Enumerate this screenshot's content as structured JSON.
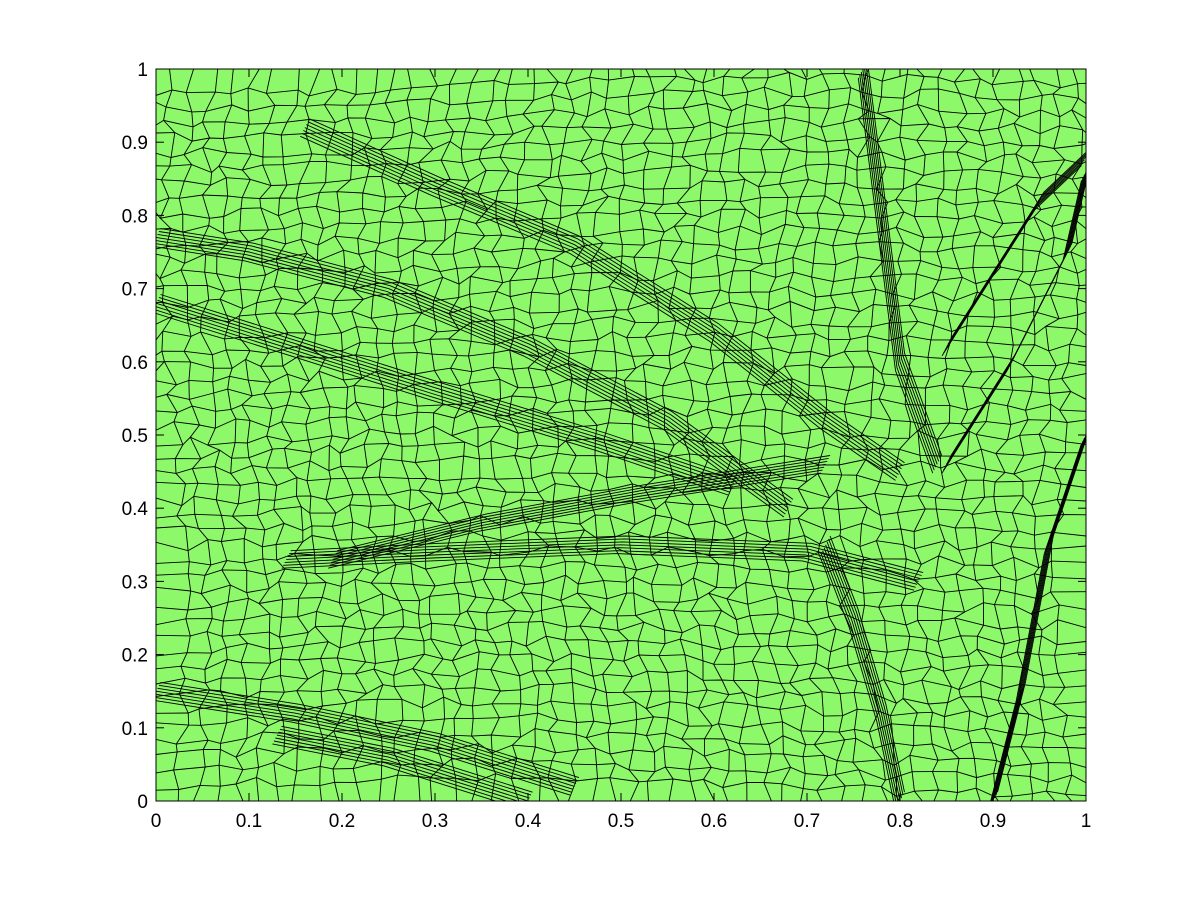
{
  "figure": {
    "background_color": "#ffffff",
    "plot_fill_color": "#8cf86a",
    "line_color": "#000000"
  },
  "chart_data": {
    "type": "mesh",
    "title": "",
    "xlabel": "",
    "ylabel": "",
    "xlim": [
      0,
      1
    ],
    "ylim": [
      0,
      1
    ],
    "grid": false,
    "xticks": [
      0,
      0.1,
      0.2,
      0.3,
      0.4,
      0.5,
      0.6,
      0.7,
      0.8,
      0.9,
      1
    ],
    "yticks": [
      0,
      0.1,
      0.2,
      0.3,
      0.4,
      0.5,
      0.6,
      0.7,
      0.8,
      0.9,
      1
    ],
    "xtick_labels": [
      "0",
      "0.1",
      "0.2",
      "0.3",
      "0.4",
      "0.5",
      "0.6",
      "0.7",
      "0.8",
      "0.9",
      "1"
    ],
    "ytick_labels": [
      "0",
      "0.1",
      "0.2",
      "0.3",
      "0.4",
      "0.5",
      "0.6",
      "0.7",
      "0.8",
      "0.9",
      "1"
    ],
    "mesh": {
      "element_type": "quadrilateral",
      "approx_resolution": [
        48,
        48
      ],
      "feature_polylines": [
        {
          "name": "feature-ridge-1",
          "points": [
            [
              0.0,
              0.77
            ],
            [
              0.1,
              0.75
            ],
            [
              0.25,
              0.7
            ],
            [
              0.4,
              0.62
            ],
            [
              0.55,
              0.52
            ],
            [
              0.68,
              0.4
            ]
          ]
        },
        {
          "name": "feature-ridge-2",
          "points": [
            [
              0.16,
              0.92
            ],
            [
              0.3,
              0.84
            ],
            [
              0.45,
              0.76
            ],
            [
              0.6,
              0.64
            ],
            [
              0.72,
              0.52
            ],
            [
              0.8,
              0.45
            ]
          ]
        },
        {
          "name": "feature-ridge-3",
          "points": [
            [
              0.14,
              0.33
            ],
            [
              0.3,
              0.34
            ],
            [
              0.5,
              0.35
            ],
            [
              0.7,
              0.34
            ],
            [
              0.82,
              0.3
            ]
          ]
        },
        {
          "name": "feature-ridge-4",
          "points": [
            [
              0.19,
              0.33
            ],
            [
              0.35,
              0.38
            ],
            [
              0.52,
              0.42
            ],
            [
              0.62,
              0.44
            ],
            [
              0.72,
              0.46
            ]
          ]
        },
        {
          "name": "feature-ridge-5",
          "points": [
            [
              0.0,
              0.68
            ],
            [
              0.15,
              0.62
            ],
            [
              0.3,
              0.56
            ],
            [
              0.48,
              0.49
            ],
            [
              0.62,
              0.43
            ]
          ]
        },
        {
          "name": "feature-ridge-6",
          "points": [
            [
              0.13,
              0.09
            ],
            [
              0.25,
              0.06
            ],
            [
              0.4,
              0.0
            ]
          ]
        },
        {
          "name": "feature-ridge-7",
          "points": [
            [
              0.0,
              0.15
            ],
            [
              0.15,
              0.12
            ],
            [
              0.3,
              0.08
            ],
            [
              0.45,
              0.02
            ]
          ]
        },
        {
          "name": "feature-ridge-8",
          "points": [
            [
              0.72,
              0.35
            ],
            [
              0.75,
              0.25
            ],
            [
              0.78,
              0.12
            ],
            [
              0.8,
              0.0
            ]
          ]
        },
        {
          "name": "feature-ridge-9",
          "points": [
            [
              0.9,
              0.0
            ],
            [
              0.93,
              0.15
            ],
            [
              0.96,
              0.35
            ],
            [
              1.0,
              0.5
            ]
          ]
        },
        {
          "name": "feature-ridge-10",
          "points": [
            [
              0.85,
              0.46
            ],
            [
              0.92,
              0.6
            ],
            [
              0.98,
              0.75
            ],
            [
              1.0,
              0.86
            ]
          ]
        },
        {
          "name": "feature-ridge-11",
          "points": [
            [
              0.85,
              0.62
            ],
            [
              0.9,
              0.72
            ],
            [
              0.95,
              0.82
            ],
            [
              1.0,
              0.88
            ]
          ]
        },
        {
          "name": "feature-ridge-12",
          "points": [
            [
              0.76,
              1.0
            ],
            [
              0.78,
              0.8
            ],
            [
              0.8,
              0.6
            ],
            [
              0.84,
              0.46
            ]
          ]
        }
      ]
    }
  }
}
